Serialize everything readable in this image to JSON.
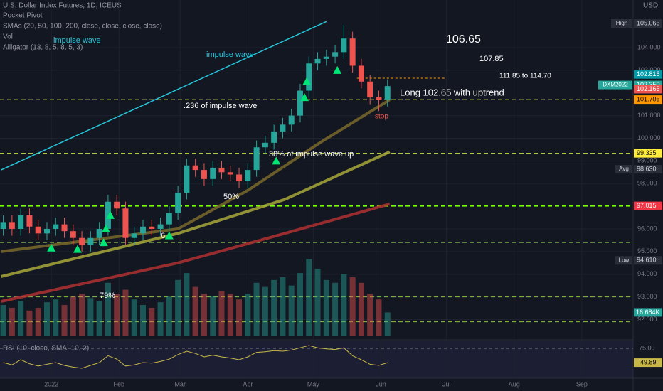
{
  "chart_data": {
    "type": "candlestick",
    "title": "U.S. Dollar Index Futures, 1D, ICEUS",
    "legend": [
      "Pocket Pivot",
      "SMAs (20, 50, 100, 200, close, close, close, close)",
      "Vol",
      "impulse wave",
      "Alligator (13, 8, 5, 8, 5, 3)"
    ],
    "currency": "USD",
    "x": [
      -22,
      -18,
      -14,
      -10,
      -6,
      -2,
      2,
      6,
      10,
      14,
      18,
      22,
      26,
      30,
      34,
      38,
      42,
      46,
      50,
      54,
      58,
      62,
      66,
      70,
      74,
      78,
      82,
      86,
      90,
      94,
      98,
      102,
      106,
      110,
      114,
      118,
      122,
      126,
      130,
      134,
      138,
      142,
      146,
      150,
      154
    ],
    "open": [
      96.0,
      96.3,
      96.0,
      96.6,
      96.1,
      95.8,
      96.0,
      96.2,
      95.9,
      95.6,
      95.3,
      95.6,
      96.0,
      97.2,
      96.9,
      95.6,
      95.8,
      96.1,
      96.0,
      96.2,
      96.7,
      97.6,
      98.8,
      98.6,
      98.2,
      98.7,
      98.5,
      98.4,
      98.1,
      98.6,
      99.6,
      99.8,
      100.3,
      100.6,
      101.0,
      102.1,
      103.3,
      103.5,
      103.6,
      103.8,
      104.4,
      103.2,
      102.5,
      101.8,
      101.7
    ],
    "high": [
      96.6,
      96.6,
      96.9,
      96.9,
      96.4,
      96.3,
      96.5,
      96.5,
      96.2,
      95.9,
      95.9,
      96.3,
      97.5,
      97.5,
      97.2,
      96.1,
      96.4,
      96.4,
      96.5,
      97.0,
      97.9,
      99.1,
      99.1,
      98.9,
      99.0,
      99.0,
      98.8,
      98.7,
      98.9,
      99.9,
      100.1,
      100.6,
      100.9,
      101.3,
      102.4,
      103.6,
      103.8,
      103.9,
      104.1,
      105.0,
      104.7,
      103.5,
      102.8,
      102.1,
      102.6
    ],
    "low": [
      95.7,
      95.7,
      95.7,
      95.8,
      95.5,
      95.5,
      95.7,
      95.6,
      95.3,
      95.0,
      95.0,
      95.3,
      95.7,
      96.6,
      95.3,
      95.3,
      95.5,
      95.7,
      95.7,
      95.9,
      96.4,
      97.3,
      98.3,
      97.9,
      97.9,
      98.2,
      98.1,
      97.8,
      97.8,
      98.3,
      99.3,
      99.5,
      100.0,
      100.3,
      100.7,
      101.8,
      103.0,
      103.2,
      103.3,
      103.5,
      102.9,
      102.2,
      101.5,
      101.2,
      101.4
    ],
    "close": [
      96.3,
      96.0,
      96.6,
      96.1,
      95.8,
      96.0,
      96.2,
      95.9,
      95.6,
      95.3,
      95.6,
      96.0,
      97.2,
      96.9,
      95.6,
      95.8,
      96.1,
      96.0,
      96.2,
      96.7,
      97.6,
      98.8,
      98.6,
      98.2,
      98.7,
      98.5,
      98.4,
      98.1,
      98.6,
      99.6,
      99.8,
      100.3,
      100.6,
      101.0,
      102.1,
      103.3,
      103.5,
      103.6,
      103.8,
      104.4,
      103.2,
      102.5,
      101.8,
      101.7,
      102.3
    ],
    "up_color": "#26a69a",
    "down_color": "#ef5350",
    "volume": [
      22,
      20,
      25,
      18,
      20,
      24,
      26,
      22,
      28,
      30,
      27,
      25,
      38,
      30,
      33,
      26,
      22,
      20,
      24,
      28,
      40,
      45,
      35,
      30,
      28,
      32,
      30,
      26,
      30,
      38,
      35,
      40,
      42,
      36,
      45,
      55,
      48,
      40,
      38,
      44,
      42,
      38,
      30,
      26,
      16.684
    ],
    "volume_label": "16.684K",
    "vlim": [
      0,
      65
    ],
    "xlim": [
      -23.5,
      266.5
    ],
    "xticks": [
      {
        "value": 0,
        "label": "2022"
      },
      {
        "value": 31,
        "label": "Feb"
      },
      {
        "value": 59,
        "label": "Mar"
      },
      {
        "value": 90,
        "label": "Apr"
      },
      {
        "value": 120,
        "label": "May"
      },
      {
        "value": 151,
        "label": "Jun"
      },
      {
        "value": 181,
        "label": "Jul"
      },
      {
        "value": 212,
        "label": "Aug"
      },
      {
        "value": 243,
        "label": "Sep"
      }
    ],
    "ylim": [
      91.2,
      106.1
    ],
    "yticks": [
      {
        "value": 92,
        "label": "92.000"
      },
      {
        "value": 93,
        "label": "93.000"
      },
      {
        "value": 94,
        "label": "94.000"
      },
      {
        "value": 95,
        "label": "95.000"
      },
      {
        "value": 96,
        "label": "96.000"
      },
      {
        "value": 98,
        "label": "98.000"
      },
      {
        "value": 99,
        "label": "99.000"
      },
      {
        "value": 100,
        "label": "100.000"
      },
      {
        "value": 101,
        "label": "101.000"
      },
      {
        "value": 103,
        "label": "103.000"
      },
      {
        "value": 104,
        "label": "104.000"
      }
    ],
    "grid": true,
    "sma_lines": [
      {
        "color": "#7a6a2a",
        "x": [
          -23,
          58,
          90,
          123,
          155
        ],
        "values": [
          95.0,
          96.0,
          97.7,
          99.8,
          101.7
        ]
      },
      {
        "color": "#a8a83a",
        "x": [
          -23,
          58,
          107,
          155
        ],
        "values": [
          93.9,
          95.8,
          97.3,
          99.4
        ]
      },
      {
        "color": "#b03030",
        "x": [
          -23,
          58,
          107,
          155
        ],
        "values": [
          92.8,
          94.5,
          95.8,
          97.1
        ]
      }
    ],
    "trendline": {
      "color": "#26c6da",
      "x": [
        -23,
        126
      ],
      "values": [
        98.6,
        105.15
      ]
    },
    "levels": [
      {
        "value": 97.015,
        "color": "#76ff03"
      },
      {
        "value": 99.335,
        "color": "#c6e04c"
      },
      {
        "value": 101.705,
        "color": "#c6e04c"
      },
      {
        "value": 95.4,
        "color": "#8bc34a"
      },
      {
        "value": 93.0,
        "color": "#8bc34a"
      },
      {
        "value": 91.9,
        "color": "#8bc34a"
      }
    ],
    "entry_line": {
      "value": 102.65,
      "x": [
        140,
        181
      ],
      "color": "#ff9800"
    },
    "pivot_markers": {
      "color": "#00e676",
      "x": [
        0,
        12,
        24,
        25,
        27,
        54,
        103,
        116,
        117,
        131
      ],
      "values": [
        95.16,
        95.1,
        95.4,
        96.0,
        96.6,
        95.7,
        99.0,
        101.8,
        102.5,
        103.0
      ]
    },
    "price_labels": [
      {
        "tag": "High",
        "label": "105.065",
        "value": 105.065,
        "color": "#2a2e39",
        "text_color": "#d1d4dc"
      },
      {
        "label": "102.815",
        "value": 102.815,
        "color": "#0097a7",
        "text_color": "#ffffff"
      },
      {
        "tag": "DXM2022",
        "label": "102.350",
        "value": 102.35,
        "color": "#26a69a",
        "text_color": "#ffffff"
      },
      {
        "label": "102.165",
        "value": 102.165,
        "color": "#ef5350",
        "text_color": "#ffffff"
      },
      {
        "label": "101.705",
        "value": 101.705,
        "color": "#ff9800",
        "text_color": "#000000"
      },
      {
        "label": "99.335",
        "value": 99.335,
        "color": "#ffeb3b",
        "text_color": "#000000"
      },
      {
        "tag": "Avg",
        "label": "98.630",
        "value": 98.63,
        "color": "#2a2e39",
        "text_color": "#d1d4dc"
      },
      {
        "label": "97.015",
        "value": 97.015,
        "color": "#f23645",
        "text_color": "#ffffff"
      },
      {
        "tag": "Low",
        "label": "94.610",
        "value": 94.61,
        "color": "#2a2e39",
        "text_color": "#d1d4dc"
      }
    ],
    "annotations": [
      "impulse wave",
      "106.65",
      "107.85",
      "111.85  to  114.70",
      "Long 102.65 with uptrend",
      ".236 of impulse wave",
      "stop",
      "38% of impulse wave up",
      "50%",
      "6",
      "79%"
    ],
    "rsi": {
      "title": "RSI (10, close, SMA, 10, 2)",
      "color": "#c8b84a",
      "values": [
        50,
        46,
        55,
        48,
        44,
        47,
        50,
        45,
        42,
        40,
        45,
        50,
        62,
        56,
        44,
        46,
        50,
        49,
        52,
        56,
        64,
        70,
        66,
        60,
        63,
        60,
        58,
        55,
        60,
        68,
        69,
        71,
        70,
        72,
        76,
        80,
        76,
        74,
        73,
        76,
        62,
        55,
        47,
        45,
        49.89
      ],
      "value_label": "49.89",
      "ylim": [
        25,
        85
      ],
      "yticks": [
        {
          "value": 75,
          "label": "75.00"
        }
      ]
    }
  }
}
